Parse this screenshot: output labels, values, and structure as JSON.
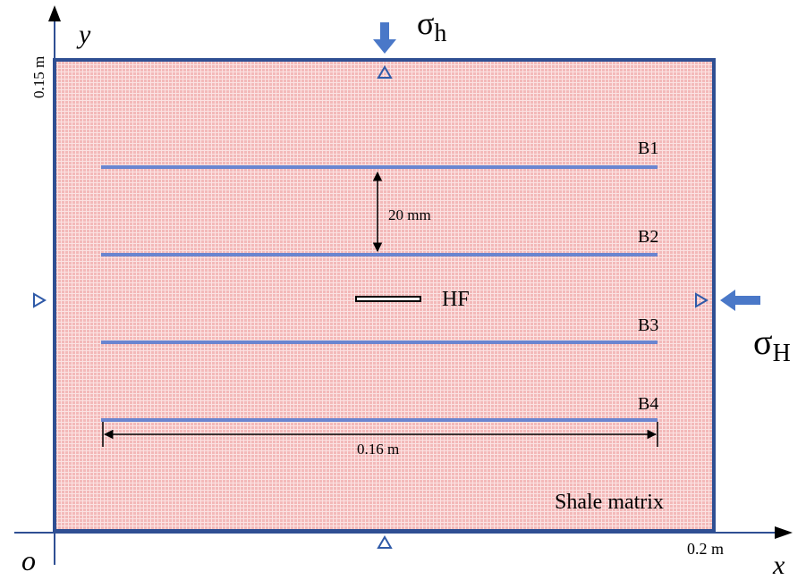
{
  "axes": {
    "y_symbol": "y",
    "x_symbol": "x",
    "origin_symbol": "o",
    "y_extent": "0.15 m",
    "x_extent": "0.2 m"
  },
  "stresses": {
    "vertical_base": "σ",
    "vertical_sub": "h",
    "horizontal_base": "σ",
    "horizontal_sub": "H"
  },
  "bedding_planes": [
    {
      "label": "B1"
    },
    {
      "label": "B2"
    },
    {
      "label": "B3"
    },
    {
      "label": "B4"
    }
  ],
  "fracture_label": "HF",
  "spacing_label": "20 mm",
  "length_label": "0.16 m",
  "matrix_label": "Shale matrix",
  "colors": {
    "matrix_fill": "#f4b8b8",
    "grid_line": "#ffffff",
    "border": "#2f4f93",
    "bedding": "#6a85d0",
    "arrow_blue": "#4a78c8",
    "support": "#2f5aa8"
  }
}
